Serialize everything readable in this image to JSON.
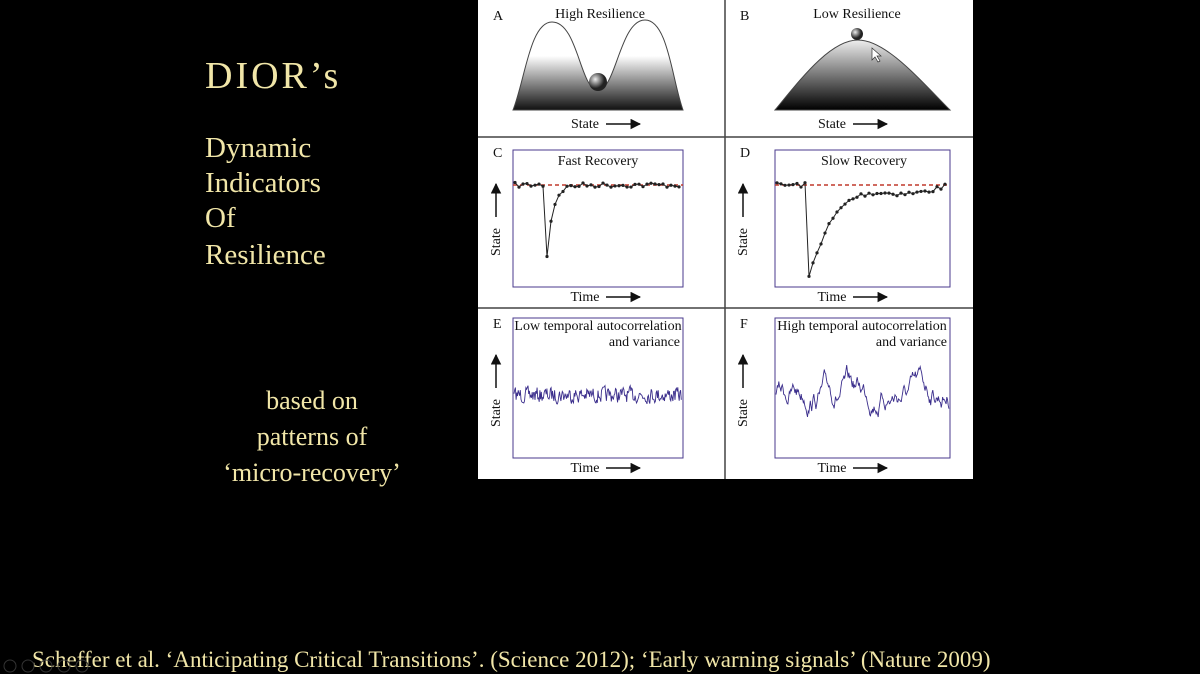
{
  "slide": {
    "title": "DIOR’s",
    "subtitle": [
      "Dynamic",
      "Indicators",
      "Of",
      "Resilience"
    ],
    "note": [
      "based on",
      "patterns of",
      "‘micro-recovery’"
    ],
    "citation": "Scheffer et al. ‘Anticipating Critical Transitions’. (Science 2012);  ‘Early warning signals’ (Nature 2009)"
  },
  "figure": {
    "panels": [
      {
        "letter": "A",
        "title": [
          "High Resilience"
        ],
        "x_label": "State"
      },
      {
        "letter": "B",
        "title": [
          "Low Resilience"
        ],
        "x_label": "State"
      },
      {
        "letter": "C",
        "title": [
          "Fast Recovery"
        ],
        "y_label": "State",
        "x_label": "Time"
      },
      {
        "letter": "D",
        "title": [
          "Slow Recovery"
        ],
        "y_label": "State",
        "x_label": "Time"
      },
      {
        "letter": "E",
        "title": [
          "Low temporal autocorrelation",
          "and variance"
        ],
        "y_label": "State",
        "x_label": "Time"
      },
      {
        "letter": "F",
        "title": [
          "High temporal autocorrelation",
          "and variance"
        ],
        "y_label": "State",
        "x_label": "Time"
      }
    ]
  }
}
